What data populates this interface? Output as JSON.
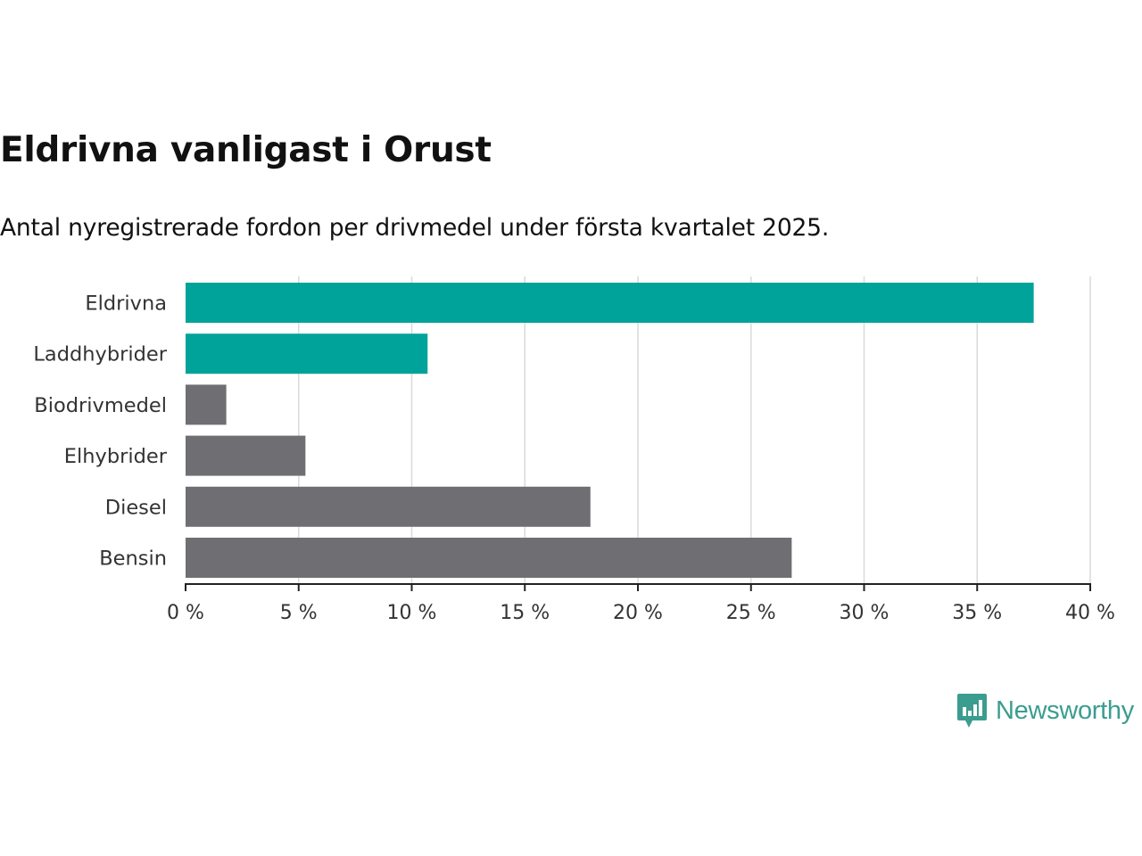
{
  "chart": {
    "title": "Eldrivna vanligast i Orust",
    "subtitle": "Antal nyregistrerade fordon per drivmedel under första kvartalet 2025."
  },
  "chart_data": {
    "type": "bar",
    "orientation": "horizontal",
    "title": "Eldrivna vanligast i Orust",
    "subtitle": "Antal nyregistrerade fordon per drivmedel under första kvartalet 2025.",
    "xlabel": "",
    "ylabel": "",
    "categories": [
      "Eldrivna",
      "Laddhybrider",
      "Biodrivmedel",
      "Elhybrider",
      "Diesel",
      "Bensin"
    ],
    "values": [
      37.5,
      10.7,
      1.8,
      5.3,
      17.9,
      26.8
    ],
    "unit": "%",
    "xlim": [
      0,
      40
    ],
    "xticks": [
      0,
      5,
      10,
      15,
      20,
      25,
      30,
      35,
      40
    ],
    "xtick_labels": [
      "0 %",
      "5 %",
      "10 %",
      "15 %",
      "20 %",
      "25 %",
      "30 %",
      "35 %",
      "40 %"
    ],
    "bar_colors": [
      "#00a39a",
      "#00a39a",
      "#6f6e73",
      "#6f6e73",
      "#6f6e73",
      "#6f6e73"
    ],
    "grid": true,
    "legend": "none"
  },
  "brand": {
    "name": "Newsworthy",
    "icon": "newsworthy-logo-icon",
    "color": "#3a9d8f"
  }
}
